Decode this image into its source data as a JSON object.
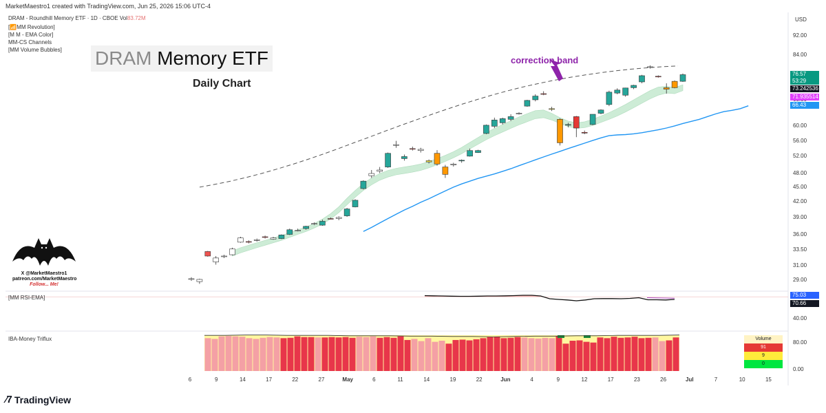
{
  "header": {
    "created_line": "MarketMaestro1 created with TradingView.com, Jun 25, 2026 15:06 UTC-4"
  },
  "symbol": {
    "line": "DRAM - Roundhill Memory ETF · 1D · CBOE",
    "vol_label": "Vol",
    "vol_value": "83.72M"
  },
  "indicators": [
    "[📶MM Revolution]",
    "[M M - EMA Color]",
    "MM-CS Channels",
    "[MM Volume Bubbles]"
  ],
  "title": {
    "prefix": "DRAM",
    "rest": " Memory ETF",
    "subtitle": "Daily Chart"
  },
  "annotation": "correction band",
  "currency": "USD",
  "price_tags": [
    {
      "text": "76.57",
      "color": "#089981"
    },
    {
      "text": "53:29",
      "color": "#089981"
    },
    {
      "text": "73.242536",
      "color": "#131722"
    },
    {
      "text": "71.935514",
      "color": "#e040fb"
    },
    {
      "text": "66.43",
      "color": "#2196f3"
    }
  ],
  "rsi": {
    "label": "[MM RSI-EMA]",
    "tags": [
      {
        "text": "75.03",
        "color": "#2962ff"
      },
      {
        "text": "70.66",
        "color": "#131722"
      }
    ],
    "axis_label": "40.00"
  },
  "triflux": {
    "label": "IBA-Money Triflux",
    "axis": [
      "80.00",
      "0.00"
    ],
    "vol_panel": {
      "title": "Volume",
      "rows": [
        "91",
        "9",
        "0"
      ]
    }
  },
  "watermark": {
    "line1": "X @MarketMaestro1",
    "line2": "patreon.com/MarketMaestro",
    "line3": "Follow... Me!"
  },
  "footer": {
    "brand": "TradingView"
  },
  "chart_data": {
    "type": "candlestick",
    "title": "DRAM Memory ETF",
    "subtitle": "Daily Chart",
    "y_ticks": [
      "92.00",
      "84.00",
      "76.00",
      "68.00",
      "60.00",
      "56.00",
      "52.00",
      "48.00",
      "45.00",
      "42.00",
      "39.00",
      "36.00",
      "33.50",
      "31.00",
      "29.00"
    ],
    "x_ticks": [
      "6",
      "9",
      "14",
      "17",
      "22",
      "27",
      "May",
      "6",
      "11",
      "14",
      "19",
      "22",
      "Jun",
      "4",
      "9",
      "12",
      "17",
      "23",
      "26",
      "Jul",
      "7",
      "10",
      "15"
    ],
    "candles": [
      {
        "o": 29.2,
        "h": 29.4,
        "l": 28.9,
        "c": 29.1
      },
      {
        "o": 28.8,
        "h": 29.2,
        "l": 28.5,
        "c": 29.1
      },
      {
        "o": 33.2,
        "h": 33.3,
        "l": 32.4,
        "c": 32.5
      },
      {
        "o": 31.6,
        "h": 32.5,
        "l": 31.2,
        "c": 32.2
      },
      {
        "o": 32.4,
        "h": 32.7,
        "l": 32.2,
        "c": 32.5
      },
      {
        "o": 32.7,
        "h": 33.8,
        "l": 32.6,
        "c": 33.6
      },
      {
        "o": 34.7,
        "h": 35.6,
        "l": 34.6,
        "c": 35.4
      },
      {
        "o": 34.8,
        "h": 35.0,
        "l": 34.5,
        "c": 34.8
      },
      {
        "o": 35.0,
        "h": 35.3,
        "l": 34.8,
        "c": 35.1
      },
      {
        "o": 35.6,
        "h": 35.8,
        "l": 35.3,
        "c": 35.5
      },
      {
        "o": 35.2,
        "h": 35.6,
        "l": 35.1,
        "c": 35.4
      },
      {
        "o": 35.3,
        "h": 36.0,
        "l": 35.2,
        "c": 35.9
      },
      {
        "o": 36.0,
        "h": 37.0,
        "l": 35.9,
        "c": 36.8
      },
      {
        "o": 36.7,
        "h": 37.0,
        "l": 36.5,
        "c": 36.7
      },
      {
        "o": 37.0,
        "h": 37.5,
        "l": 36.8,
        "c": 37.4
      },
      {
        "o": 37.8,
        "h": 38.1,
        "l": 37.6,
        "c": 37.9
      },
      {
        "o": 37.6,
        "h": 38.6,
        "l": 37.5,
        "c": 38.3
      },
      {
        "o": 38.8,
        "h": 39.0,
        "l": 38.7,
        "c": 38.8
      },
      {
        "o": 38.8,
        "h": 39.2,
        "l": 38.5,
        "c": 39.0
      },
      {
        "o": 39.3,
        "h": 40.8,
        "l": 39.1,
        "c": 40.6
      },
      {
        "o": 41.0,
        "h": 42.5,
        "l": 40.9,
        "c": 42.3
      },
      {
        "o": 44.7,
        "h": 46.5,
        "l": 44.5,
        "c": 46.3
      },
      {
        "o": 47.5,
        "h": 48.8,
        "l": 47.0,
        "c": 48.0
      },
      {
        "o": 48.5,
        "h": 49.5,
        "l": 48.1,
        "c": 48.8
      },
      {
        "o": 49.5,
        "h": 53.0,
        "l": 49.3,
        "c": 52.8
      },
      {
        "o": 55.0,
        "h": 56.0,
        "l": 54.2,
        "c": 55.0
      },
      {
        "o": 51.5,
        "h": 52.5,
        "l": 51.0,
        "c": 52.0
      },
      {
        "o": 54.0,
        "h": 54.5,
        "l": 53.5,
        "c": 54.0
      },
      {
        "o": 53.5,
        "h": 54.2,
        "l": 53.0,
        "c": 53.8
      },
      {
        "o": 51.0,
        "h": 51.3,
        "l": 50.3,
        "c": 50.7
      },
      {
        "o": 52.8,
        "h": 53.6,
        "l": 49.8,
        "c": 50.2
      },
      {
        "o": 49.5,
        "h": 50.0,
        "l": 47.0,
        "c": 47.8
      },
      {
        "o": 50.0,
        "h": 50.5,
        "l": 49.6,
        "c": 50.2
      },
      {
        "o": 51.0,
        "h": 51.3,
        "l": 50.5,
        "c": 51.1
      },
      {
        "o": 52.1,
        "h": 54.0,
        "l": 52.0,
        "c": 53.5
      },
      {
        "o": 53.0,
        "h": 53.7,
        "l": 52.9,
        "c": 53.5
      },
      {
        "o": 58.0,
        "h": 60.5,
        "l": 57.8,
        "c": 60.3
      },
      {
        "o": 60.0,
        "h": 62.5,
        "l": 59.5,
        "c": 61.8
      },
      {
        "o": 61.0,
        "h": 62.5,
        "l": 60.5,
        "c": 62.2
      },
      {
        "o": 62.0,
        "h": 63.5,
        "l": 61.5,
        "c": 62.8
      },
      {
        "o": 63.7,
        "h": 64.1,
        "l": 63.4,
        "c": 63.8
      },
      {
        "o": 66.0,
        "h": 68.0,
        "l": 65.8,
        "c": 67.8
      },
      {
        "o": 68.0,
        "h": 69.8,
        "l": 67.5,
        "c": 69.2
      },
      {
        "o": 70.0,
        "h": 70.8,
        "l": 69.5,
        "c": 70.0
      },
      {
        "o": 65.2,
        "h": 65.8,
        "l": 64.5,
        "c": 65.0
      },
      {
        "o": 62.0,
        "h": 62.3,
        "l": 54.8,
        "c": 55.5
      },
      {
        "o": 60.5,
        "h": 61.0,
        "l": 59.7,
        "c": 60.3
      },
      {
        "o": 62.8,
        "h": 63.0,
        "l": 57.0,
        "c": 59.5
      },
      {
        "o": 58.3,
        "h": 58.8,
        "l": 57.8,
        "c": 58.1
      },
      {
        "o": 60.5,
        "h": 63.5,
        "l": 60.3,
        "c": 63.5
      },
      {
        "o": 63.8,
        "h": 65.0,
        "l": 63.5,
        "c": 64.8
      },
      {
        "o": 66.5,
        "h": 71.0,
        "l": 66.0,
        "c": 70.5
      },
      {
        "o": 70.2,
        "h": 71.8,
        "l": 69.8,
        "c": 71.2
      },
      {
        "o": 69.5,
        "h": 72.0,
        "l": 69.0,
        "c": 71.9
      },
      {
        "o": 72.0,
        "h": 73.0,
        "l": 71.5,
        "c": 72.8
      },
      {
        "o": 74.0,
        "h": 76.5,
        "l": 73.5,
        "c": 76.2
      },
      {
        "o": 79.5,
        "h": 80.0,
        "l": 78.8,
        "c": 79.4
      },
      {
        "o": 76.0,
        "h": 76.3,
        "l": 75.5,
        "c": 75.8
      },
      {
        "o": 72.0,
        "h": 73.5,
        "l": 70.0,
        "c": 71.5
      },
      {
        "o": 72.0,
        "h": 74.5,
        "l": 71.8,
        "c": 74.2
      },
      {
        "o": 74.2,
        "h": 77.0,
        "l": 74.0,
        "c": 76.57
      }
    ],
    "candle_colors": [
      "white",
      "white",
      "#ef5350",
      "white",
      "white",
      "white",
      "white",
      "#ef5350",
      "white",
      "#ef5350",
      "white",
      "#26a69a",
      "#26a69a",
      "white",
      "#26a69a",
      "white",
      "#26a69a",
      "#ef5350",
      "white",
      "#26a69a",
      "#26a69a",
      "#26a69a",
      "white",
      "white",
      "#26a69a",
      "white",
      "#26a69a",
      "#ef5350",
      "white",
      "#ffeb3b",
      "#ff9800",
      "#ff9800",
      "white",
      "#26a69a",
      "#26a69a",
      "#26a69a",
      "#26a69a",
      "#26a69a",
      "#26a69a",
      "#26a69a",
      "white",
      "#26a69a",
      "#26a69a",
      "#ef5350",
      "#ffeb3b",
      "#ff9800",
      "#26a69a",
      "#e53935",
      "#e53935",
      "#26a69a",
      "#26a69a",
      "#26a69a",
      "#26a69a",
      "#26a69a",
      "#26a69a",
      "#26a69a",
      "white",
      "#ef5350",
      "#ff9800",
      "#ff9800",
      "#26a69a"
    ],
    "ema_band_upper": [
      33.3,
      33.8,
      34.2,
      34.6,
      35.0,
      35.4,
      35.8,
      36.3,
      36.8,
      37.3,
      37.9,
      38.7,
      39.7,
      41.0,
      42.7,
      44.3,
      45.8,
      47.0,
      48.0,
      48.7,
      49.2,
      49.5,
      49.8,
      50.2,
      50.8,
      51.5,
      52.3,
      53.2,
      54.3,
      55.6,
      56.9,
      58.2,
      59.4,
      60.5,
      61.6,
      62.7,
      63.7,
      64.6,
      64.8,
      63.8,
      62.5,
      61.5,
      61.0,
      61.3,
      62.0,
      63.0,
      64.0,
      65.2,
      66.5,
      68.0,
      69.5,
      71.0,
      72.2,
      72.5,
      72.0,
      73.0
    ],
    "ema_band_lower": [
      32.5,
      33.0,
      33.4,
      33.8,
      34.2,
      34.6,
      35.0,
      35.5,
      36.0,
      36.5,
      37.1,
      37.8,
      38.7,
      39.9,
      41.4,
      42.9,
      44.3,
      45.5,
      46.5,
      47.2,
      47.7,
      48.0,
      48.3,
      48.7,
      49.3,
      50.0,
      50.8,
      51.7,
      52.7,
      53.9,
      55.1,
      56.3,
      57.4,
      58.4,
      59.4,
      60.4,
      61.3,
      62.2,
      62.5,
      61.8,
      60.8,
      59.9,
      59.4,
      59.6,
      60.2,
      61.1,
      62.0,
      63.0,
      64.2,
      65.5,
      66.9,
      68.3,
      69.5,
      70.2,
      70.0,
      71.0
    ],
    "blue_ema": [
      36.5,
      37.2,
      38.0,
      38.8,
      39.6,
      40.4,
      41.1,
      41.9,
      42.6,
      43.4,
      44.2,
      45.0,
      45.7,
      46.3,
      46.9,
      47.4,
      47.9,
      48.5,
      49.1,
      49.8,
      50.5,
      51.2,
      51.9,
      52.6,
      53.3,
      54.0,
      54.7,
      55.4,
      56.1,
      56.8,
      57.4,
      57.6,
      57.7,
      57.9,
      58.2,
      58.6,
      59.0,
      59.5,
      60.1,
      60.8,
      61.4,
      62.0,
      62.8,
      63.6,
      64.3,
      64.7,
      65.2,
      66.1
    ],
    "correction_band": [
      45.0,
      45.6,
      46.3,
      47.1,
      48.0,
      49.0,
      50.1,
      51.3,
      52.6,
      54.0,
      55.5,
      57.0,
      58.6,
      60.2,
      61.8,
      63.4,
      65.0,
      66.6,
      68.1,
      69.6,
      71.0,
      72.3,
      73.5,
      74.6,
      75.6,
      76.5,
      77.3,
      78.0,
      78.6,
      79.1,
      79.5,
      79.8
    ],
    "rsi_values": [
      90,
      89,
      88,
      87,
      86,
      86,
      87,
      88,
      88,
      89,
      90,
      92,
      92,
      88,
      72,
      68,
      65,
      60,
      65,
      72,
      73,
      73,
      72,
      74,
      78,
      66,
      66,
      65,
      68
    ],
    "triflux_values": [
      90,
      88,
      95,
      96,
      95,
      94,
      90,
      88,
      91,
      93,
      92,
      90,
      91,
      95,
      93,
      93,
      92,
      92,
      93,
      92,
      93,
      91,
      94,
      93,
      95,
      91,
      93,
      91,
      95,
      85,
      88,
      82,
      90,
      80,
      83,
      75,
      85,
      86,
      84,
      87,
      90,
      93,
      94,
      90,
      91,
      93,
      92,
      90,
      89,
      91,
      90,
      95,
      75,
      83,
      84,
      80,
      78,
      92,
      90,
      94,
      91,
      92,
      94,
      90,
      91,
      92,
      82,
      84,
      92
    ],
    "triflux_colors": [
      "#f4a0a5",
      "#f4a0a5",
      "#f4a0a5",
      "#f4a0a5",
      "#f4a0a5",
      "#f4a0a5",
      "#f4a0a5",
      "#f4a0a5",
      "#f4a0a5",
      "#f4a0a5",
      "#f4a0a5",
      "#e8364a",
      "#e8364a",
      "#e8364a",
      "#e8364a",
      "#e8364a",
      "#f4a0a5",
      "#e8364a",
      "#e8364a",
      "#e8364a",
      "#e8364a",
      "#e8364a",
      "#f4a0a5",
      "#f4a0a5",
      "#f4a0a5",
      "#e8364a",
      "#e8364a",
      "#e8364a",
      "#e8364a",
      "#e8364a",
      "#f4a0a5",
      "#f4a0a5",
      "#f4a0a5",
      "#f4a0a5",
      "#f4a0a5",
      "#e8364a",
      "#e8364a",
      "#e8364a",
      "#e8364a",
      "#e8364a",
      "#e8364a",
      "#e8364a",
      "#e8364a",
      "#e8364a",
      "#e8364a",
      "#e8364a",
      "#f4a0a5",
      "#f4a0a5",
      "#f4a0a5",
      "#f4a0a5",
      "#f4a0a5",
      "#e8364a",
      "#e8364a",
      "#e8364a",
      "#e8364a",
      "#e8364a",
      "#e8364a",
      "#e8364a",
      "#e8364a",
      "#e8364a",
      "#e8364a",
      "#e8364a",
      "#e8364a",
      "#e8364a",
      "#e8364a",
      "#f4a0a5",
      "#f4a0a5",
      "#e8364a",
      "#e8364a"
    ]
  }
}
